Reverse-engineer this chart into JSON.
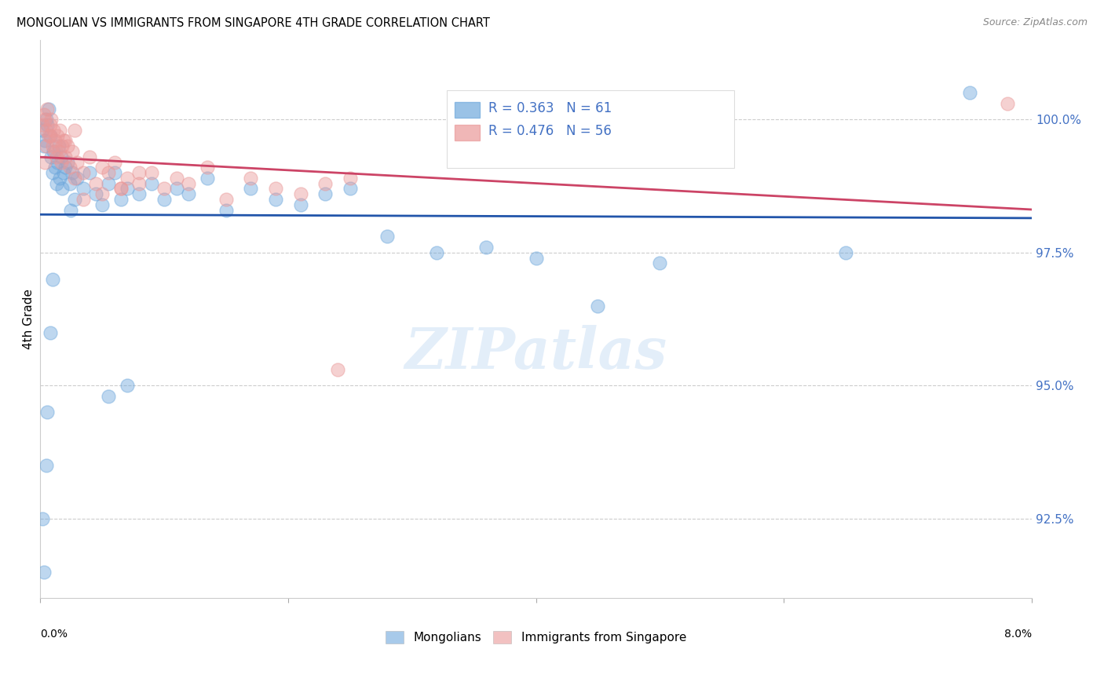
{
  "title": "MONGOLIAN VS IMMIGRANTS FROM SINGAPORE 4TH GRADE CORRELATION CHART",
  "source": "Source: ZipAtlas.com",
  "ylabel": "4th Grade",
  "xlim": [
    0.0,
    8.0
  ],
  "ylim": [
    91.0,
    101.5
  ],
  "yticks": [
    92.5,
    95.0,
    97.5,
    100.0
  ],
  "ytick_labels": [
    "92.5%",
    "95.0%",
    "97.5%",
    "100.0%"
  ],
  "mongolian_color": "#6fa8dc",
  "singapore_color": "#ea9999",
  "trendline_mongolian_color": "#2255aa",
  "trendline_singapore_color": "#cc4466",
  "legend_mongolian": "Mongolians",
  "legend_singapore": "Immigrants from Singapore",
  "r_mongolian": 0.363,
  "n_mongolian": 61,
  "r_singapore": 0.476,
  "n_singapore": 56,
  "mongolian_x": [
    0.02,
    0.03,
    0.04,
    0.05,
    0.06,
    0.07,
    0.08,
    0.09,
    0.1,
    0.11,
    0.12,
    0.13,
    0.14,
    0.15,
    0.16,
    0.17,
    0.18,
    0.19,
    0.2,
    0.22,
    0.24,
    0.26,
    0.28,
    0.3,
    0.35,
    0.4,
    0.45,
    0.5,
    0.55,
    0.6,
    0.65,
    0.7,
    0.8,
    0.9,
    1.0,
    1.1,
    1.2,
    1.35,
    1.5,
    1.7,
    1.9,
    2.1,
    2.3,
    2.5,
    2.8,
    3.2,
    3.6,
    4.0,
    4.5,
    5.0,
    0.02,
    0.03,
    0.05,
    0.06,
    0.08,
    0.1,
    0.25,
    0.55,
    0.7,
    6.5,
    7.5
  ],
  "mongolian_y": [
    99.8,
    99.5,
    99.6,
    100.0,
    99.9,
    100.2,
    99.7,
    99.3,
    99.0,
    99.4,
    99.1,
    98.8,
    99.2,
    99.5,
    98.9,
    99.3,
    98.7,
    99.0,
    99.1,
    99.2,
    98.8,
    99.0,
    98.5,
    98.9,
    98.7,
    99.0,
    98.6,
    98.4,
    98.8,
    99.0,
    98.5,
    98.7,
    98.6,
    98.8,
    98.5,
    98.7,
    98.6,
    98.9,
    98.3,
    98.7,
    98.5,
    98.4,
    98.6,
    98.7,
    97.8,
    97.5,
    97.6,
    97.4,
    96.5,
    97.3,
    92.5,
    91.5,
    93.5,
    94.5,
    96.0,
    97.0,
    98.3,
    94.8,
    95.0,
    97.5,
    100.5
  ],
  "singapore_x": [
    0.02,
    0.03,
    0.04,
    0.05,
    0.06,
    0.07,
    0.08,
    0.09,
    0.1,
    0.11,
    0.12,
    0.13,
    0.14,
    0.15,
    0.16,
    0.17,
    0.18,
    0.19,
    0.2,
    0.22,
    0.24,
    0.26,
    0.28,
    0.3,
    0.35,
    0.4,
    0.45,
    0.5,
    0.55,
    0.6,
    0.65,
    0.7,
    0.8,
    0.9,
    1.0,
    1.1,
    1.2,
    1.35,
    1.5,
    1.7,
    1.9,
    2.1,
    2.3,
    2.5,
    0.04,
    0.05,
    0.08,
    0.12,
    0.2,
    0.28,
    0.35,
    0.5,
    0.65,
    0.8,
    2.4,
    7.8
  ],
  "singapore_y": [
    99.9,
    100.1,
    100.0,
    99.8,
    100.2,
    99.7,
    99.9,
    100.0,
    99.5,
    99.8,
    99.6,
    99.3,
    99.7,
    99.4,
    99.8,
    99.2,
    99.5,
    99.6,
    99.3,
    99.5,
    99.1,
    99.4,
    98.9,
    99.2,
    99.0,
    99.3,
    98.8,
    98.6,
    99.0,
    99.2,
    98.7,
    98.9,
    98.8,
    99.0,
    98.7,
    98.9,
    98.8,
    99.1,
    98.5,
    98.9,
    98.7,
    98.6,
    98.8,
    98.9,
    99.2,
    99.5,
    99.7,
    99.4,
    99.6,
    99.8,
    98.5,
    99.1,
    98.7,
    99.0,
    95.3,
    100.3
  ]
}
